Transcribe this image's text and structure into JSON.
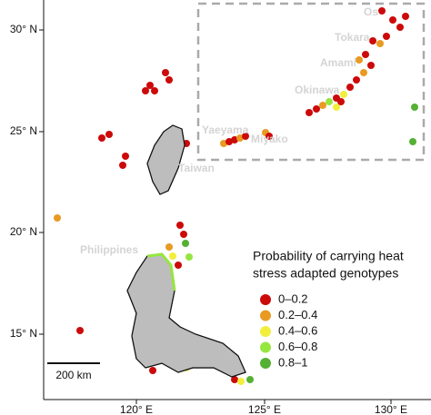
{
  "map": {
    "lat_labels": [
      "30° N",
      "25° N",
      "20° N",
      "15° N"
    ],
    "lon_labels": [
      "120° E",
      "125° E",
      "130° E"
    ],
    "places": [
      "Os",
      "Tokara",
      "Amami",
      "Okinawa",
      "Yaeyama",
      "Miyako",
      "Taiwan",
      "Philippines"
    ],
    "legend": {
      "title": [
        "Probability of carrying heat",
        "stress adapted genotypes"
      ],
      "entries": [
        {
          "label": "0–0.2",
          "color": "#cc0a0a"
        },
        {
          "label": "0.2–0.4",
          "color": "#e89a22"
        },
        {
          "label": "0.4–0.6",
          "color": "#f2ee3c"
        },
        {
          "label": "0.6–0.8",
          "color": "#96e640"
        },
        {
          "label": "0.8–1",
          "color": "#55b034"
        }
      ]
    },
    "scale_bar": "200 km"
  }
}
